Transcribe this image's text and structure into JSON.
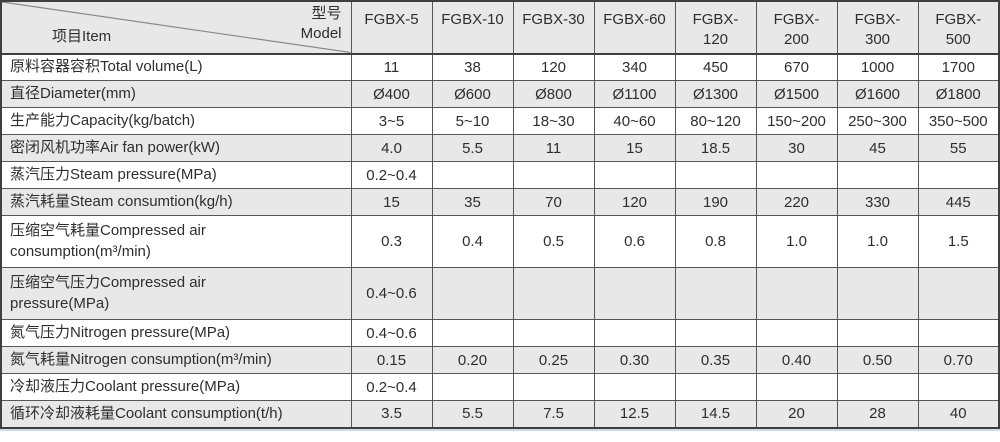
{
  "colors": {
    "row_shade": "#e8e8e8",
    "border_outer": "#3f3f3f",
    "border_inner": "#565656",
    "text": "#2e2e2e",
    "diagonal_line": "#8a8a8a",
    "bottom_accent_line": "#ccdde8"
  },
  "table": {
    "corner": {
      "model_label_cn": "型号",
      "model_label_en": "Model",
      "item_label": "项目Item"
    },
    "models": [
      {
        "name": "FGBX-5",
        "display_lines": [
          "FGBX-5"
        ]
      },
      {
        "name": "FGBX-10",
        "display_lines": [
          "FGBX-10"
        ]
      },
      {
        "name": "FGBX-30",
        "display_lines": [
          "FGBX-30"
        ]
      },
      {
        "name": "FGBX-60",
        "display_lines": [
          "FGBX-60"
        ]
      },
      {
        "name": "FGBX-120",
        "display_lines": [
          "FGBX-",
          "120"
        ]
      },
      {
        "name": "FGBX-200",
        "display_lines": [
          "FGBX-",
          "200"
        ]
      },
      {
        "name": "FGBX-300",
        "display_lines": [
          "FGBX-",
          "300"
        ]
      },
      {
        "name": "FGBX-500",
        "display_lines": [
          "FGBX-",
          "500"
        ]
      }
    ],
    "rows": [
      {
        "label": "原料容器容积Total volume(L)",
        "display_lines": [
          "原料容器容积Total volume(L)"
        ],
        "values": [
          "11",
          "38",
          "120",
          "340",
          "450",
          "670",
          "1000",
          "1700"
        ]
      },
      {
        "label": "直径Diameter(mm)",
        "display_lines": [
          "直径Diameter(mm)"
        ],
        "values": [
          "Ø400",
          "Ø600",
          "Ø800",
          "Ø1100",
          "Ø1300",
          "Ø1500",
          "Ø1600",
          "Ø1800"
        ]
      },
      {
        "label": "生产能力Capacity(kg/batch)",
        "display_lines": [
          "生产能力Capacity(kg/batch)"
        ],
        "values": [
          "3~5",
          "5~10",
          "18~30",
          "40~60",
          "80~120",
          "150~200",
          "250~300",
          "350~500"
        ]
      },
      {
        "label": "密闭风机功率Air fan power(kW)",
        "display_lines": [
          "密闭风机功率Air fan power(kW)"
        ],
        "values": [
          "4.0",
          "5.5",
          "11",
          "15",
          "18.5",
          "30",
          "45",
          "55"
        ]
      },
      {
        "label": "蒸汽压力Steam pressure(MPa)",
        "display_lines": [
          "蒸汽压力Steam pressure(MPa)"
        ],
        "values": [
          "0.2~0.4",
          "",
          "",
          "",
          "",
          "",
          "",
          ""
        ]
      },
      {
        "label": "蒸汽耗量Steam consumtion(kg/h)",
        "display_lines": [
          "蒸汽耗量Steam consumtion(kg/h)"
        ],
        "values": [
          "15",
          "35",
          "70",
          "120",
          "190",
          "220",
          "330",
          "445"
        ]
      },
      {
        "label": "压缩空气耗量Compressed air consumption(m³/min)",
        "display_lines": [
          "压缩空气耗量Compressed air",
          "consumption(m³/min)"
        ],
        "values": [
          "0.3",
          "0.4",
          "0.5",
          "0.6",
          "0.8",
          "1.0",
          "1.0",
          "1.5"
        ]
      },
      {
        "label": "压缩空气压力Compressed air pressure(MPa)",
        "display_lines": [
          "压缩空气压力Compressed air",
          "pressure(MPa)"
        ],
        "values": [
          "0.4~0.6",
          "",
          "",
          "",
          "",
          "",
          "",
          ""
        ]
      },
      {
        "label": "氮气压力Nitrogen pressure(MPa)",
        "display_lines": [
          "氮气压力Nitrogen pressure(MPa)"
        ],
        "values": [
          "0.4~0.6",
          "",
          "",
          "",
          "",
          "",
          "",
          ""
        ]
      },
      {
        "label": "氮气耗量Nitrogen consumption(m³/min)",
        "display_lines": [
          "氮气耗量Nitrogen consumption(m³/min)"
        ],
        "values": [
          "0.15",
          "0.20",
          "0.25",
          "0.30",
          "0.35",
          "0.40",
          "0.50",
          "0.70"
        ]
      },
      {
        "label": "冷却液压力Coolant pressure(MPa)",
        "display_lines": [
          "冷却液压力Coolant pressure(MPa)"
        ],
        "values": [
          "0.2~0.4",
          "",
          "",
          "",
          "",
          "",
          "",
          ""
        ]
      },
      {
        "label": "循环冷却液耗量Coolant consumption(t/h)",
        "display_lines": [
          "循环冷却液耗量Coolant consumption(t/h)"
        ],
        "values": [
          "3.5",
          "5.5",
          "7.5",
          "12.5",
          "14.5",
          "20",
          "28",
          "40"
        ]
      }
    ]
  }
}
